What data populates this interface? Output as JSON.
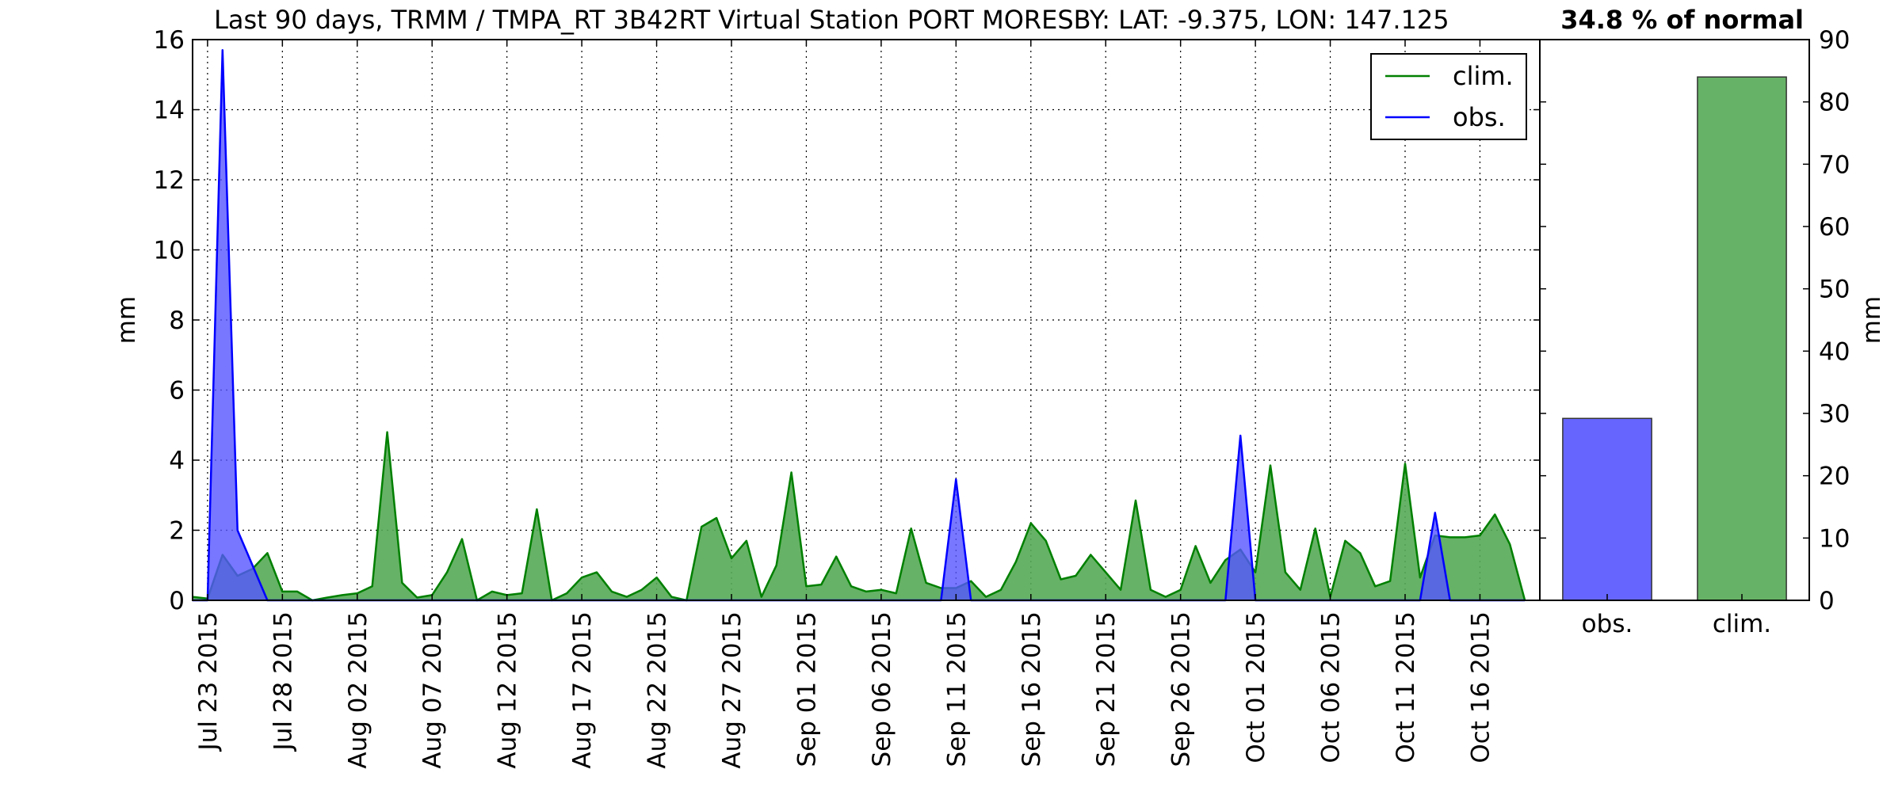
{
  "chart_data": [
    {
      "type": "area",
      "title": "Last 90 days, TRMM / TMPA_RT 3B42RT Virtual Station PORT MORESBY: LAT: -9.375, LON: 147.125",
      "ylabel": "mm",
      "ylim": [
        0,
        16
      ],
      "yticks": [
        "0",
        "2",
        "4",
        "6",
        "8",
        "10",
        "12",
        "14",
        "16"
      ],
      "x_start": "Jul 22 2015",
      "x_end": "Oct 20 2015",
      "xticks": [
        "Jul 23 2015",
        "Jul 28 2015",
        "Aug 02 2015",
        "Aug 07 2015",
        "Aug 12 2015",
        "Aug 17 2015",
        "Aug 22 2015",
        "Aug 27 2015",
        "Sep 01 2015",
        "Sep 06 2015",
        "Sep 11 2015",
        "Sep 16 2015",
        "Sep 21 2015",
        "Sep 26 2015",
        "Oct 01 2015",
        "Oct 06 2015",
        "Oct 11 2015",
        "Oct 16 2015"
      ],
      "grid": true,
      "legend_position": "top-right",
      "series": [
        {
          "name": "clim.",
          "color": "#008000",
          "fill": "#55aa55",
          "values": [
            0.1,
            0.05,
            1.3,
            0.7,
            0.9,
            1.35,
            0.25,
            0.25,
            0,
            0.08,
            0.15,
            0.2,
            0.4,
            4.8,
            0.5,
            0.08,
            0.15,
            0.8,
            1.75,
            0,
            0.25,
            0.15,
            0.2,
            2.6,
            0,
            0.2,
            0.65,
            0.8,
            0.25,
            0.1,
            0.3,
            0.65,
            0.1,
            0,
            2.1,
            2.35,
            1.2,
            1.7,
            0.1,
            1,
            3.65,
            0.4,
            0.45,
            1.25,
            0.4,
            0.25,
            0.3,
            0.2,
            2.05,
            0.5,
            0.35,
            0.35,
            0.55,
            0.1,
            0.3,
            1.1,
            2.2,
            1.7,
            0.6,
            0.7,
            1.3,
            0.8,
            0.3,
            2.85,
            0.3,
            0.1,
            0.3,
            1.55,
            0.5,
            1.15,
            1.45,
            0.8,
            3.85,
            0.8,
            0.3,
            2.05,
            0.1,
            1.7,
            1.35,
            0.4,
            0.55,
            3.9,
            0.65,
            1.85,
            1.8,
            1.8,
            1.85,
            2.45,
            1.6,
            0
          ]
        },
        {
          "name": "obs.",
          "color": "#0000ff",
          "fill": "#5555ff",
          "values": [
            0,
            0,
            15.7,
            2,
            1,
            0,
            0,
            0,
            0,
            0,
            0,
            0,
            0,
            0,
            0,
            0,
            0,
            0,
            0,
            0,
            0,
            0,
            0,
            0,
            0,
            0,
            0,
            0,
            0,
            0,
            0,
            0,
            0,
            0,
            0,
            0,
            0,
            0,
            0,
            0,
            0,
            0,
            0,
            0,
            0,
            0,
            0,
            0,
            0,
            0,
            0,
            3.45,
            0,
            0,
            0,
            0,
            0,
            0,
            0,
            0,
            0,
            0,
            0,
            0,
            0,
            0,
            0,
            0,
            0,
            0,
            4.7,
            0,
            0,
            0,
            0,
            0,
            0,
            0,
            0,
            0,
            0,
            0,
            0,
            2.5,
            0,
            0,
            0,
            0,
            0,
            0
          ]
        }
      ]
    },
    {
      "type": "bar",
      "title": "34.8 % of normal",
      "ylabel": "mm",
      "ylim": [
        0,
        90
      ],
      "yticks": [
        "0",
        "10",
        "20",
        "30",
        "40",
        "50",
        "60",
        "70",
        "80",
        "90"
      ],
      "categories": [
        "obs.",
        "clim."
      ],
      "values": [
        29.2,
        84
      ],
      "colors": [
        "#6666ff",
        "#66b266"
      ]
    }
  ]
}
